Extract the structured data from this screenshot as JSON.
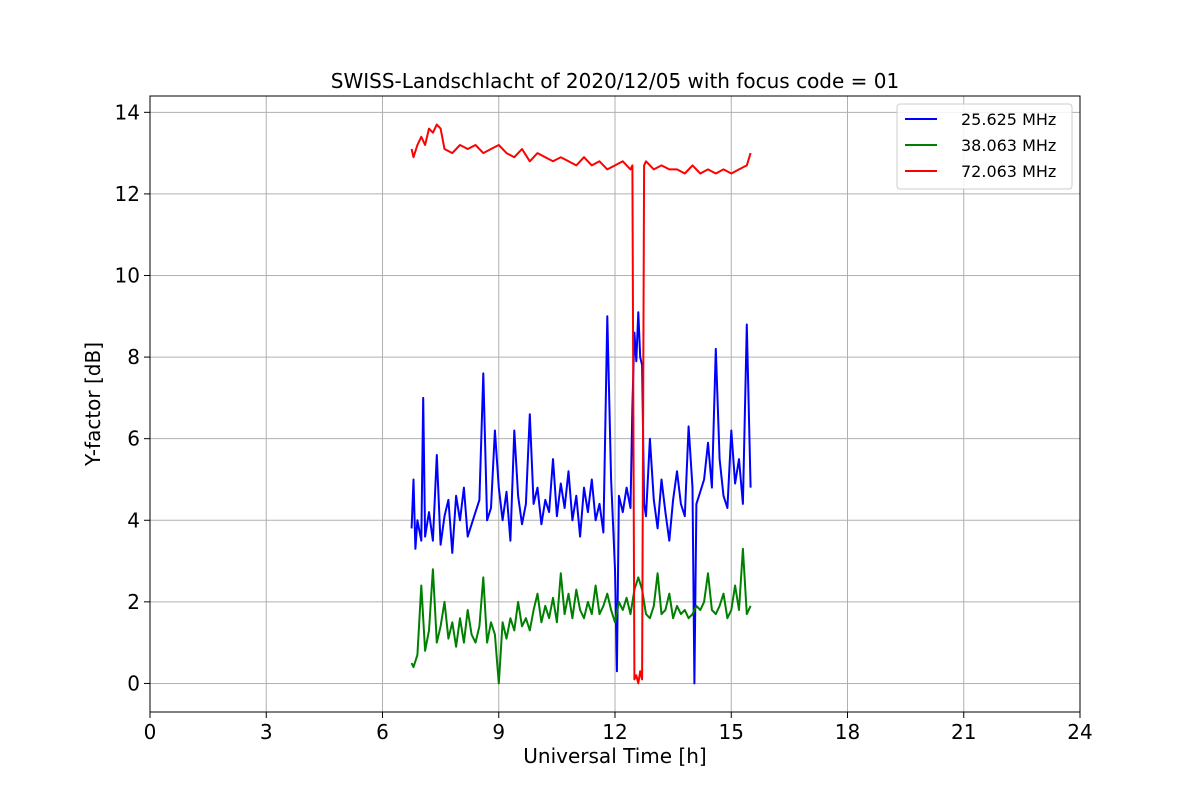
{
  "chart_data": {
    "type": "line",
    "title": "SWISS-Landschlacht of 2020/12/05 with focus code = 01",
    "xlabel": "Universal Time [h]",
    "ylabel": "Y-factor [dB]",
    "xlim": [
      0,
      24
    ],
    "ylim": [
      -0.7,
      14.4
    ],
    "xticks": [
      0,
      3,
      6,
      9,
      12,
      15,
      18,
      21,
      24
    ],
    "yticks": [
      0,
      2,
      4,
      6,
      8,
      10,
      12,
      14
    ],
    "grid": true,
    "legend_position": "top-right",
    "series": [
      {
        "name": "25.625 MHz",
        "color": "#0000ff",
        "x": [
          6.75,
          6.8,
          6.85,
          6.9,
          7.0,
          7.05,
          7.1,
          7.2,
          7.3,
          7.4,
          7.5,
          7.6,
          7.7,
          7.8,
          7.9,
          8.0,
          8.1,
          8.2,
          8.3,
          8.4,
          8.5,
          8.6,
          8.7,
          8.8,
          8.9,
          9.0,
          9.1,
          9.2,
          9.3,
          9.4,
          9.5,
          9.6,
          9.7,
          9.8,
          9.9,
          10.0,
          10.1,
          10.2,
          10.3,
          10.4,
          10.5,
          10.6,
          10.7,
          10.8,
          10.9,
          11.0,
          11.1,
          11.2,
          11.3,
          11.4,
          11.5,
          11.6,
          11.7,
          11.8,
          11.9,
          12.0,
          12.05,
          12.1,
          12.2,
          12.3,
          12.4,
          12.45,
          12.5,
          12.55,
          12.6,
          12.65,
          12.7,
          12.75,
          12.8,
          12.9,
          13.0,
          13.1,
          13.2,
          13.3,
          13.4,
          13.5,
          13.6,
          13.7,
          13.8,
          13.9,
          14.0,
          14.05,
          14.1,
          14.2,
          14.3,
          14.4,
          14.5,
          14.6,
          14.7,
          14.8,
          14.9,
          15.0,
          15.1,
          15.2,
          15.3,
          15.4,
          15.5
        ],
        "y": [
          3.8,
          5.0,
          3.3,
          4.0,
          3.5,
          7.0,
          3.6,
          4.2,
          3.5,
          5.6,
          3.4,
          4.1,
          4.5,
          3.2,
          4.6,
          4.0,
          4.8,
          3.6,
          3.9,
          4.2,
          4.5,
          7.6,
          4.0,
          4.3,
          6.2,
          4.8,
          4.0,
          4.7,
          3.5,
          6.2,
          4.6,
          3.9,
          4.4,
          6.6,
          4.4,
          4.8,
          3.9,
          4.5,
          4.2,
          5.5,
          4.1,
          4.9,
          4.3,
          5.2,
          4.0,
          4.6,
          3.6,
          4.8,
          4.2,
          5.0,
          4.0,
          4.4,
          3.7,
          9.0,
          5.0,
          2.8,
          0.3,
          4.6,
          4.2,
          4.8,
          4.3,
          6.8,
          8.6,
          7.9,
          9.1,
          8.0,
          7.8,
          4.4,
          4.1,
          6.0,
          4.5,
          3.8,
          5.0,
          4.2,
          3.5,
          4.5,
          5.2,
          4.4,
          4.1,
          6.3,
          4.8,
          0.0,
          4.4,
          4.7,
          5.0,
          5.9,
          4.8,
          8.2,
          5.5,
          4.6,
          4.3,
          6.2,
          4.9,
          5.5,
          4.4,
          8.8,
          4.8
        ]
      },
      {
        "name": "38.063 MHz",
        "color": "#008000",
        "x": [
          6.75,
          6.8,
          6.9,
          7.0,
          7.1,
          7.2,
          7.3,
          7.4,
          7.5,
          7.6,
          7.7,
          7.8,
          7.9,
          8.0,
          8.1,
          8.2,
          8.3,
          8.4,
          8.5,
          8.6,
          8.7,
          8.8,
          8.9,
          9.0,
          9.1,
          9.2,
          9.3,
          9.4,
          9.5,
          9.6,
          9.7,
          9.8,
          9.9,
          10.0,
          10.1,
          10.2,
          10.3,
          10.4,
          10.5,
          10.6,
          10.7,
          10.8,
          10.9,
          11.0,
          11.1,
          11.2,
          11.3,
          11.4,
          11.5,
          11.6,
          11.7,
          11.8,
          11.9,
          12.0,
          12.1,
          12.2,
          12.3,
          12.4,
          12.5,
          12.6,
          12.7,
          12.8,
          12.9,
          13.0,
          13.1,
          13.2,
          13.3,
          13.4,
          13.5,
          13.6,
          13.7,
          13.8,
          13.9,
          14.0,
          14.1,
          14.2,
          14.3,
          14.4,
          14.5,
          14.6,
          14.7,
          14.8,
          14.9,
          15.0,
          15.1,
          15.2,
          15.3,
          15.4,
          15.5
        ],
        "y": [
          0.5,
          0.4,
          0.7,
          2.4,
          0.8,
          1.3,
          2.8,
          1.0,
          1.4,
          2.0,
          1.1,
          1.5,
          0.9,
          1.6,
          1.0,
          1.8,
          1.2,
          1.0,
          1.4,
          2.6,
          1.0,
          1.5,
          1.2,
          0.0,
          1.5,
          1.1,
          1.6,
          1.3,
          2.0,
          1.4,
          1.6,
          1.3,
          1.8,
          2.2,
          1.5,
          1.9,
          1.6,
          2.1,
          1.5,
          2.7,
          1.7,
          2.2,
          1.6,
          2.3,
          1.8,
          1.6,
          2.0,
          1.7,
          2.4,
          1.7,
          1.9,
          2.2,
          1.8,
          1.5,
          2.0,
          1.8,
          2.1,
          1.7,
          2.3,
          2.6,
          2.3,
          1.7,
          1.6,
          1.9,
          2.7,
          1.7,
          1.8,
          2.2,
          1.6,
          1.9,
          1.7,
          1.8,
          1.6,
          1.7,
          1.9,
          1.8,
          2.0,
          2.7,
          1.8,
          1.7,
          1.9,
          2.2,
          1.6,
          1.8,
          2.4,
          1.8,
          3.3,
          1.7,
          1.9
        ]
      },
      {
        "name": "72.063 MHz",
        "color": "#ff0000",
        "x": [
          6.75,
          6.8,
          6.9,
          7.0,
          7.1,
          7.2,
          7.3,
          7.4,
          7.5,
          7.6,
          7.8,
          8.0,
          8.2,
          8.4,
          8.6,
          8.8,
          9.0,
          9.2,
          9.4,
          9.6,
          9.8,
          10.0,
          10.2,
          10.4,
          10.6,
          10.8,
          11.0,
          11.2,
          11.4,
          11.6,
          11.8,
          12.0,
          12.2,
          12.4,
          12.45,
          12.5,
          12.55,
          12.6,
          12.65,
          12.7,
          12.75,
          12.8,
          13.0,
          13.2,
          13.4,
          13.6,
          13.8,
          14.0,
          14.2,
          14.4,
          14.6,
          14.8,
          15.0,
          15.2,
          15.4,
          15.5
        ],
        "y": [
          13.1,
          12.9,
          13.2,
          13.4,
          13.2,
          13.6,
          13.5,
          13.7,
          13.6,
          13.1,
          13.0,
          13.2,
          13.1,
          13.2,
          13.0,
          13.1,
          13.2,
          13.0,
          12.9,
          13.1,
          12.8,
          13.0,
          12.9,
          12.8,
          12.9,
          12.8,
          12.7,
          12.9,
          12.7,
          12.8,
          12.6,
          12.7,
          12.8,
          12.6,
          12.7,
          0.1,
          0.2,
          0.0,
          0.3,
          0.1,
          12.7,
          12.8,
          12.6,
          12.7,
          12.6,
          12.6,
          12.5,
          12.7,
          12.5,
          12.6,
          12.5,
          12.6,
          12.5,
          12.6,
          12.7,
          13.0
        ]
      }
    ]
  }
}
